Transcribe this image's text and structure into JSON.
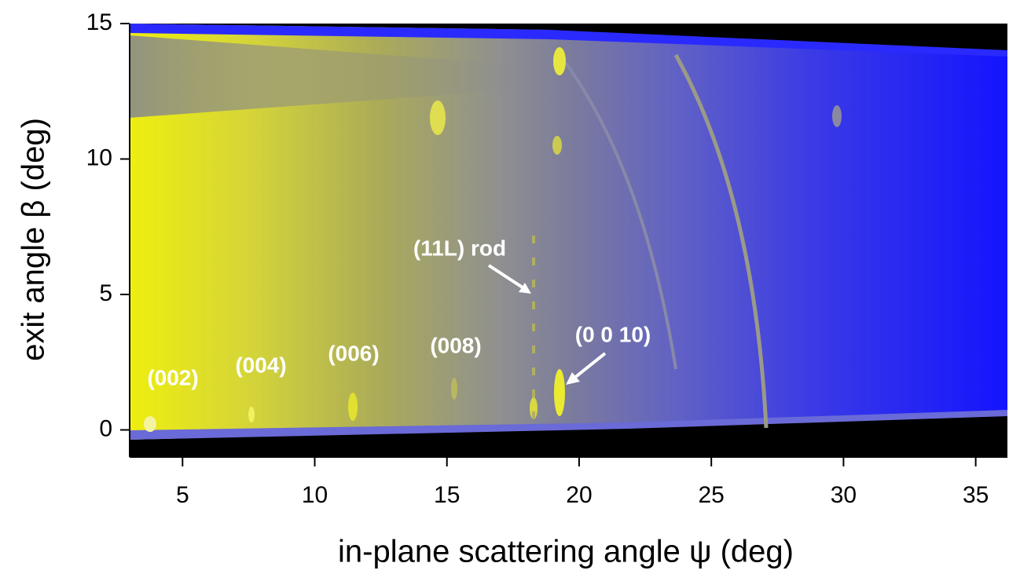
{
  "chart_data": {
    "type": "map",
    "xlabel": "in-plane scattering angle ψ (deg)",
    "ylabel": "exit angle β (deg)",
    "xlim": [
      3,
      36.2
    ],
    "xticks": [
      5,
      10,
      15,
      20,
      25,
      30,
      35
    ],
    "ylim": [
      -1,
      15
    ],
    "yticks": [
      0,
      5,
      10,
      15
    ],
    "annotations": [
      "(002)",
      "(004)",
      "(006)",
      "(008)",
      "(11L) rod",
      "(0 0 10)"
    ]
  }
}
